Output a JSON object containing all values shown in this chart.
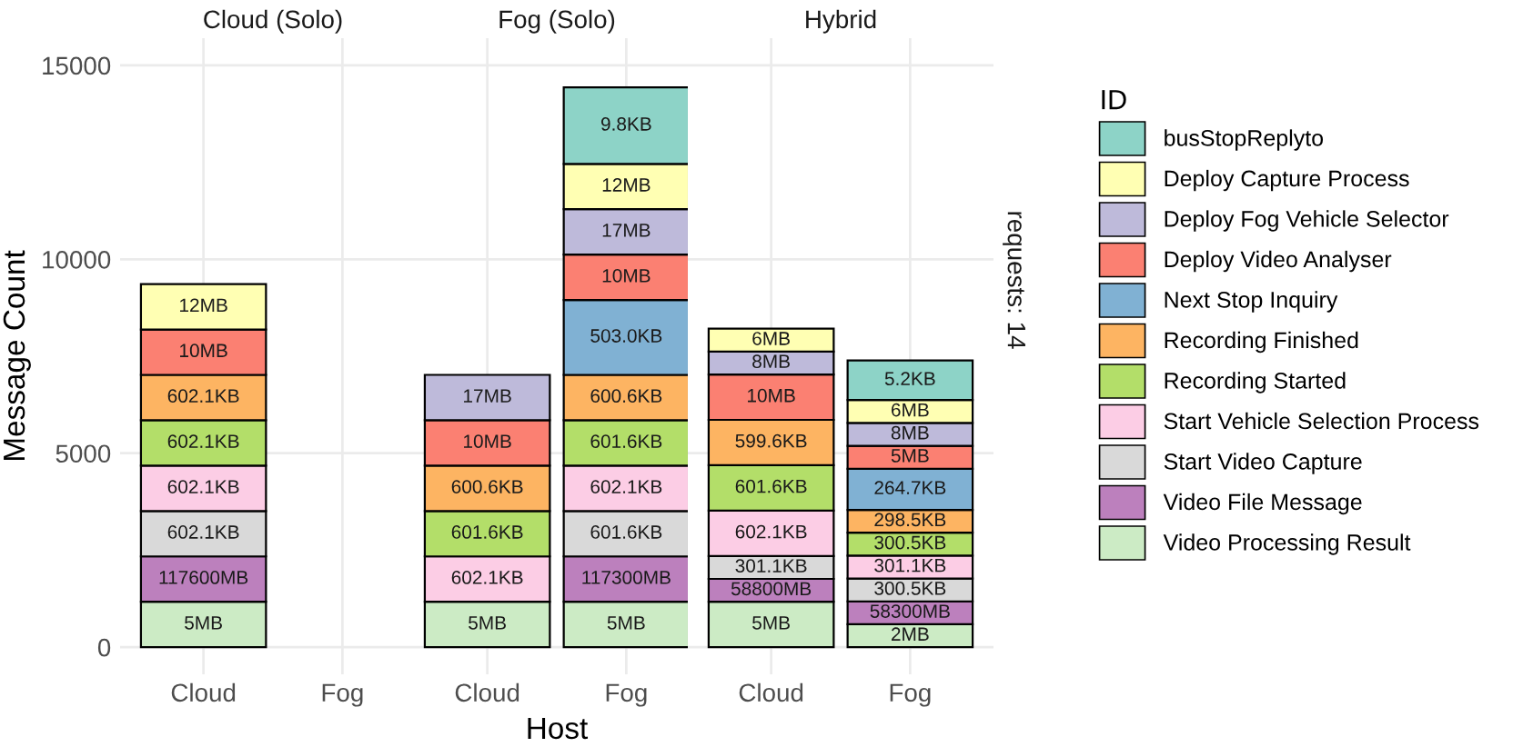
{
  "chart_data": [
    {
      "type": "bar",
      "title": "Cloud (Solo)",
      "ylabel": "Message Count",
      "categories": [
        "Cloud",
        "Fog"
      ],
      "stacked": true,
      "ylim": [
        -700,
        15700
      ],
      "yticks": [
        0,
        5000,
        10000,
        15000
      ],
      "grid": true,
      "series": [
        {
          "color": "#ccebc5",
          "values": [
            1170,
            null
          ]
        },
        {
          "color": "#bc80bd",
          "values": [
            1170,
            null
          ]
        },
        {
          "color": "#d9d9d9",
          "values": [
            1170,
            null
          ]
        },
        {
          "color": "#fccde5",
          "values": [
            1170,
            null
          ]
        },
        {
          "color": "#b3de69",
          "values": [
            1170,
            null
          ]
        },
        {
          "color": "#fdb462",
          "values": [
            1170,
            null
          ]
        },
        {
          "color": "#fb8072",
          "values": [
            1170,
            null
          ]
        },
        {
          "color": "#ffffb3",
          "values": [
            1170,
            null
          ]
        }
      ],
      "annotations": [
        "5MB",
        "117600MB",
        "602.1KB",
        "602.1KB",
        "602.1KB",
        "602.1KB",
        "10MB",
        "12MB"
      ]
    },
    {
      "type": "bar",
      "title": "Fog (Solo)",
      "xlabel": "Host",
      "categories": [
        "Cloud",
        "Fog"
      ],
      "stacked": true,
      "ylim": [
        -700,
        15700
      ],
      "yticks": [
        0,
        5000,
        10000,
        15000
      ],
      "grid": true,
      "tick_labels": "x",
      "series": [
        {
          "color": "#ccebc5",
          "values": [
            1170,
            1170
          ]
        },
        {
          "color": "#bc80bd",
          "values": [
            null,
            1170
          ]
        },
        {
          "color": "#d9d9d9",
          "values": [
            null,
            1170
          ]
        },
        {
          "color": "#fccde5",
          "values": [
            1170,
            1170
          ]
        },
        {
          "color": "#b3de69",
          "values": [
            1170,
            1170
          ]
        },
        {
          "color": "#fdb462",
          "values": [
            1170,
            1170
          ]
        },
        {
          "color": "#80b1d3",
          "values": [
            null,
            1930
          ]
        },
        {
          "color": "#fb8072",
          "values": [
            1170,
            1170
          ]
        },
        {
          "color": "#bebada",
          "values": [
            1170,
            1170
          ]
        },
        {
          "color": "#ffffb3",
          "values": [
            null,
            1170
          ]
        },
        {
          "color": "#8dd3c7",
          "values": [
            null,
            1970
          ]
        }
      ],
      "annotations": [
        "5MB",
        "602.1KB",
        "601.6KB",
        "600.6KB",
        "10MB",
        "17MB",
        "5MB",
        "117300MB",
        "601.6KB",
        "602.1KB",
        "601.6KB",
        "600.6KB",
        "503.0KB",
        "10MB",
        "17MB",
        "12MB",
        "9.8KB"
      ]
    },
    {
      "type": "bar",
      "title": "Hybrid",
      "categories": [
        "Cloud",
        "Fog"
      ],
      "stacked": true,
      "ylim": [
        -700,
        15700
      ],
      "yticks": [
        0,
        5000,
        10000,
        15000
      ],
      "grid": true,
      "legend": "right",
      "legend_title": "ID",
      "tick_labels": "x",
      "series": [
        {
          "name": "Video Processing Result",
          "color": "#ccebc5",
          "values": [
            1170,
            590
          ]
        },
        {
          "name": "Video File Message",
          "color": "#bc80bd",
          "values": [
            590,
            590
          ]
        },
        {
          "name": "Start Video Capture",
          "color": "#d9d9d9",
          "values": [
            590,
            590
          ]
        },
        {
          "name": "Start Vehicle Selection Process",
          "color": "#fccde5",
          "values": [
            1170,
            590
          ]
        },
        {
          "name": "Recording Started",
          "color": "#b3de69",
          "values": [
            1170,
            590
          ]
        },
        {
          "name": "Recording Finished",
          "color": "#fdb462",
          "values": [
            1170,
            590
          ]
        },
        {
          "name": "Next Stop Inquiry",
          "color": "#80b1d3",
          "values": [
            null,
            1060
          ]
        },
        {
          "name": "Deploy Video Analyser",
          "color": "#fb8072",
          "values": [
            1170,
            590
          ]
        },
        {
          "name": "Deploy Fog Vehicle Selector",
          "color": "#bebada",
          "values": [
            590,
            590
          ]
        },
        {
          "name": "Deploy Capture Process",
          "color": "#ffffb3",
          "values": [
            590,
            590
          ]
        },
        {
          "name": "busStopReplyto",
          "color": "#8dd3c7",
          "values": [
            null,
            1020
          ]
        }
      ],
      "annotations": [
        "5MB",
        "58800MB",
        "301.1KB",
        "602.1KB",
        "601.6KB",
        "599.6KB",
        "10MB",
        "8MB",
        "6MB",
        "2MB",
        "58300MB",
        "300.5KB",
        "301.1KB",
        "300.5KB",
        "298.5KB",
        "264.7KB",
        "5MB",
        "8MB",
        "6MB",
        "5.2KB",
        "requests: 14"
      ]
    }
  ]
}
